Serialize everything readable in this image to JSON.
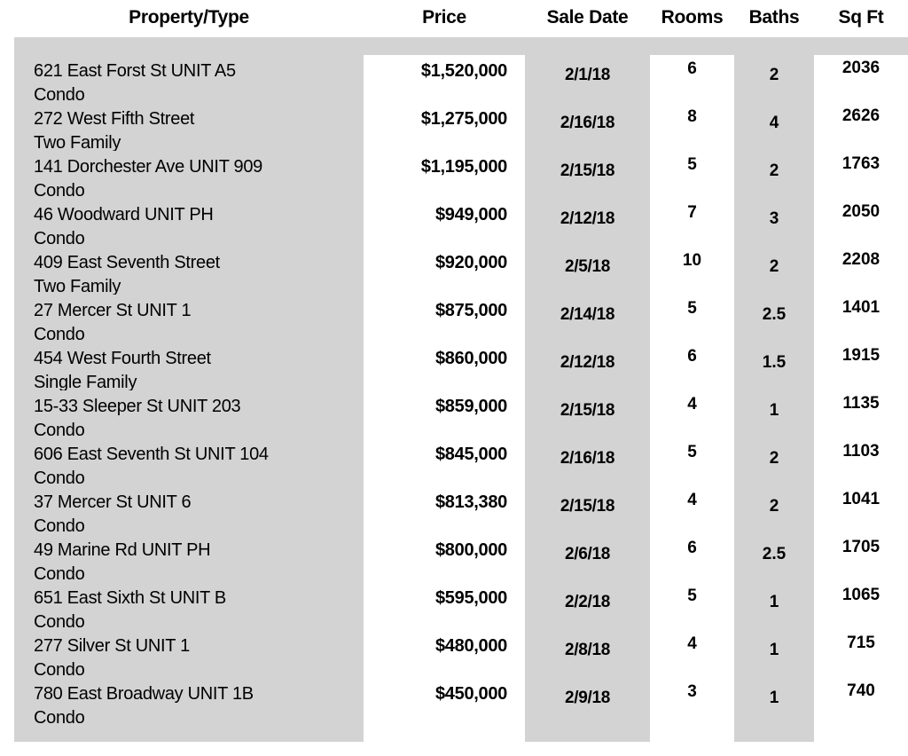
{
  "colors": {
    "band_gray": "#d3d3d3",
    "band_white": "#ffffff",
    "text": "#000000"
  },
  "table": {
    "columns": [
      {
        "label": "Property/Type"
      },
      {
        "label": "Price"
      },
      {
        "label": "Sale Date"
      },
      {
        "label": "Rooms"
      },
      {
        "label": "Baths"
      },
      {
        "label": "Sq Ft"
      }
    ],
    "rows": [
      {
        "address": "621 East Forst St UNIT A5",
        "type": "Condo",
        "price": "$1,520,000",
        "sale_date": "2/1/18",
        "rooms": "6",
        "baths": "2",
        "sqft": "2036"
      },
      {
        "address": "272 West Fifth Street",
        "type": "Two Family",
        "price": "$1,275,000",
        "sale_date": "2/16/18",
        "rooms": "8",
        "baths": "4",
        "sqft": "2626"
      },
      {
        "address": "141 Dorchester Ave UNIT 909",
        "type": "Condo",
        "price": "$1,195,000",
        "sale_date": "2/15/18",
        "rooms": "5",
        "baths": "2",
        "sqft": "1763"
      },
      {
        "address": "46 Woodward UNIT PH",
        "type": "Condo",
        "price": "$949,000",
        "sale_date": "2/12/18",
        "rooms": "7",
        "baths": "3",
        "sqft": "2050"
      },
      {
        "address": "409 East Seventh Street",
        "type": "Two Family",
        "price": "$920,000",
        "sale_date": "2/5/18",
        "rooms": "10",
        "baths": "2",
        "sqft": "2208"
      },
      {
        "address": "27 Mercer St UNIT 1",
        "type": "Condo",
        "price": "$875,000",
        "sale_date": "2/14/18",
        "rooms": "5",
        "baths": "2.5",
        "sqft": "1401"
      },
      {
        "address": "454 West Fourth Street",
        "type": "Single Family",
        "price": "$860,000",
        "sale_date": "2/12/18",
        "rooms": "6",
        "baths": "1.5",
        "sqft": "1915"
      },
      {
        "address": "15-33 Sleeper St UNIT 203",
        "type": "Condo",
        "price": "$859,000",
        "sale_date": "2/15/18",
        "rooms": "4",
        "baths": "1",
        "sqft": "1135"
      },
      {
        "address": "606 East Seventh St UNIT 104",
        "type": "Condo",
        "price": "$845,000",
        "sale_date": "2/16/18",
        "rooms": "5",
        "baths": "2",
        "sqft": "1103"
      },
      {
        "address": "37 Mercer St UNIT 6",
        "type": "Condo",
        "price": "$813,380",
        "sale_date": "2/15/18",
        "rooms": "4",
        "baths": "2",
        "sqft": "1041"
      },
      {
        "address": "49 Marine Rd UNIT PH",
        "type": "Condo",
        "price": "$800,000",
        "sale_date": "2/6/18",
        "rooms": "6",
        "baths": "2.5",
        "sqft": "1705"
      },
      {
        "address": "651 East Sixth St UNIT B",
        "type": "Condo",
        "price": "$595,000",
        "sale_date": "2/2/18",
        "rooms": "5",
        "baths": "1",
        "sqft": "1065"
      },
      {
        "address": "277 Silver St UNIT 1",
        "type": "Condo",
        "price": "$480,000",
        "sale_date": "2/8/18",
        "rooms": "4",
        "baths": "1",
        "sqft": "715"
      },
      {
        "address": "780 East Broadway UNIT 1B",
        "type": "Condo",
        "price": "$450,000",
        "sale_date": "2/9/18",
        "rooms": "3",
        "baths": "1",
        "sqft": "740"
      }
    ]
  }
}
